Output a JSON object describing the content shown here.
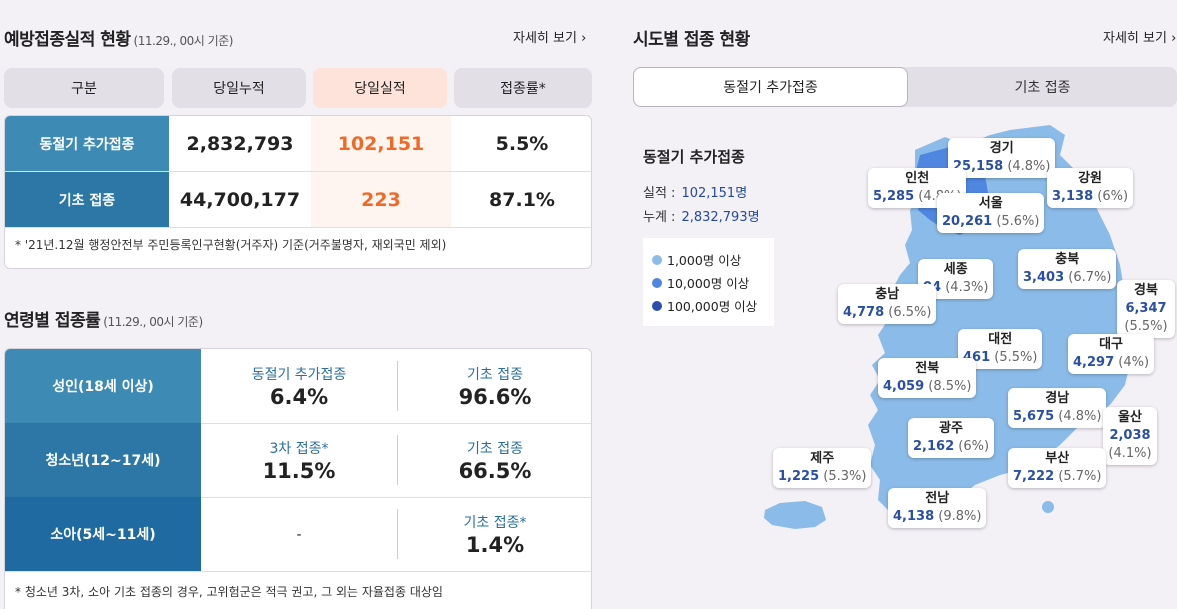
{
  "left": {
    "title": "예방접종실적 현황",
    "subtitle": "(11.29., 00시 기준)",
    "more": "자세히 보기 ›",
    "columns": [
      "구분",
      "당일누적",
      "당일실적",
      "접종률*"
    ],
    "rows": [
      {
        "name": "동절기 추가접종",
        "cumulative": "2,832,793",
        "today": "102,151",
        "rate": "5.5%"
      },
      {
        "name": "기초 접종",
        "cumulative": "44,700,177",
        "today": "223",
        "rate": "87.1%"
      }
    ],
    "note": "* '21년.12월 행정안전부 주민등록인구현황(거주자) 기준(거주불명자, 재외국민 제외)"
  },
  "age": {
    "title": "연령별 접종률",
    "subtitle": "(11.29., 00시 기준)",
    "rows": [
      {
        "name": "성인(18세 이상)",
        "a_label": "동절기 추가접종",
        "a_value": "6.4%",
        "b_label": "기초 접종",
        "b_value": "96.6%"
      },
      {
        "name": "청소년(12~17세)",
        "a_label": "3차 접종*",
        "a_value": "11.5%",
        "b_label": "기초 접종",
        "b_value": "66.5%"
      },
      {
        "name": "소아(5세~11세)",
        "a_label": "",
        "a_value": "-",
        "b_label": "기초 접종*",
        "b_value": "1.4%"
      }
    ],
    "note": "* 청소년 3차, 소아 기초 접종의 경우, 고위험군은 적극 권고, 그 외는 자율접종 대상임"
  },
  "right": {
    "title": "시도별 접종 현황",
    "more": "자세히 보기 ›",
    "tabs": [
      "동절기 추가접종",
      "기초 접종"
    ],
    "info_title": "동절기 추가접종",
    "actual_label": "실적 :",
    "actual_value": "102,151명",
    "total_label": "누계 :",
    "total_value": "2,832,793명",
    "legend": [
      "1,000명 이상",
      "10,000명 이상",
      "100,000명 이상"
    ],
    "regions": [
      {
        "name": "경기",
        "value": "25,158",
        "pct": "(4.8%)"
      },
      {
        "name": "인천",
        "value": "5,285",
        "pct": "(4.8%)"
      },
      {
        "name": "서울",
        "value": "20,261",
        "pct": "(5.6%)"
      },
      {
        "name": "강원",
        "value": "3,138",
        "pct": "(6%)"
      },
      {
        "name": "세종",
        "value": "04",
        "pct": "(4.3%)"
      },
      {
        "name": "충북",
        "value": "3,403",
        "pct": "(6.7%)"
      },
      {
        "name": "충남",
        "value": "4,778",
        "pct": "(6.5%)"
      },
      {
        "name": "경북",
        "value": "6,347",
        "pct": "(5.5%)"
      },
      {
        "name": "대전",
        "value": "461",
        "pct": "(5.5%)"
      },
      {
        "name": "대구",
        "value": "4,297",
        "pct": "(4%)"
      },
      {
        "name": "전북",
        "value": "4,059",
        "pct": "(8.5%)"
      },
      {
        "name": "경남",
        "value": "5,675",
        "pct": "(4.8%)"
      },
      {
        "name": "울산",
        "value": "2,038",
        "pct": "(4.1%)"
      },
      {
        "name": "광주",
        "value": "2,162",
        "pct": "(6%)"
      },
      {
        "name": "제주",
        "value": "1,225",
        "pct": "(5.3%)"
      },
      {
        "name": "부산",
        "value": "7,222",
        "pct": "(5.7%)"
      },
      {
        "name": "전남",
        "value": "4,138",
        "pct": "(9.8%)"
      }
    ]
  },
  "colors": {
    "row_head_1": "#3d8bb5",
    "row_head_2": "#2c77a6",
    "row_head_3": "#1f6aa0",
    "today_orange": "#ee6a26",
    "legend_light": "#8bbbe8",
    "legend_mid": "#4f86e0",
    "legend_dark": "#2a4fae",
    "map_light": "#8bbbe8",
    "map_mid": "#4f86e0"
  }
}
